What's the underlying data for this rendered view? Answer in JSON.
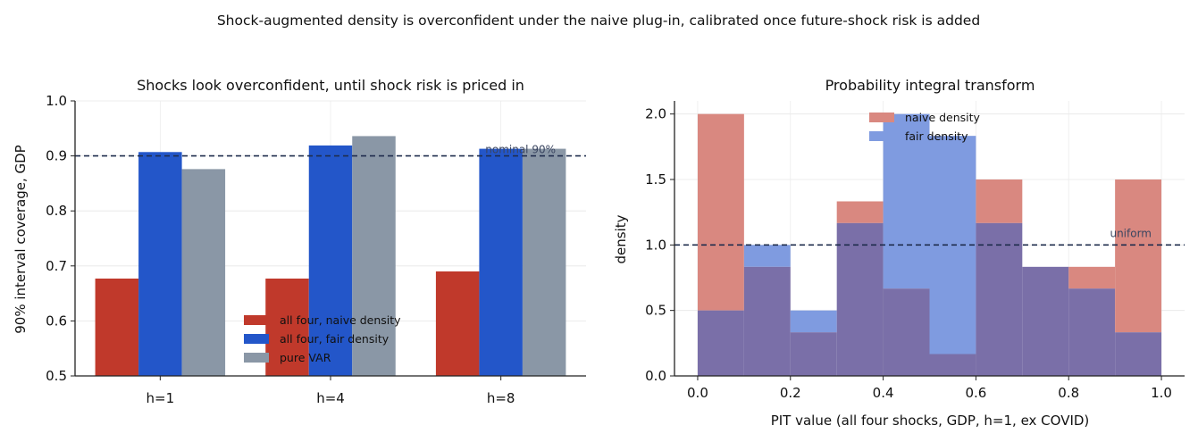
{
  "suptitle": "Shock-augmented density is overconfident under the naive plug-in, calibrated once future-shock risk is added",
  "colors": {
    "naive": "#c0392b",
    "fair": "#2356c9",
    "var": "#8a97a6",
    "ref_line": "#1f2d4d",
    "hist_naive": "#d98880",
    "hist_fair": "#7f9be0",
    "hist_overlap": "#7a6fa8"
  },
  "chart_data": [
    {
      "type": "bar",
      "title": "Shocks look overconfident, until shock risk is priced in",
      "xlabel": "",
      "ylabel": "90% interval coverage, GDP",
      "categories": [
        "h=1",
        "h=4",
        "h=8"
      ],
      "series": [
        {
          "name": "all four, naive density",
          "values": [
            0.677,
            0.677,
            0.69
          ],
          "color_key": "naive"
        },
        {
          "name": "all four, fair density",
          "values": [
            0.907,
            0.919,
            0.913
          ],
          "color_key": "fair"
        },
        {
          "name": "pure VAR",
          "values": [
            0.876,
            0.936,
            0.913
          ],
          "color_key": "var"
        }
      ],
      "ylim": [
        0.5,
        1.0
      ],
      "yticks": [
        0.5,
        0.6,
        0.7,
        0.8,
        0.9,
        1.0
      ],
      "ytick_labels": [
        "0.5",
        "0.6",
        "0.7",
        "0.8",
        "0.9",
        "1.0"
      ],
      "reference_line": {
        "value": 0.9,
        "label": "nominal 90%"
      },
      "grid": true,
      "legend_position": "lower-center"
    },
    {
      "type": "bar",
      "subtype": "histogram",
      "title": "Probability integral transform",
      "xlabel": "PIT value (all four shocks, GDP, h=1, ex COVID)",
      "ylabel": "density",
      "bin_edges": [
        0.0,
        0.1,
        0.2,
        0.3,
        0.4,
        0.5,
        0.6,
        0.7,
        0.8,
        0.9,
        1.0
      ],
      "series": [
        {
          "name": "naive density",
          "values": [
            2.0,
            0.833,
            0.333,
            1.333,
            0.667,
            0.167,
            1.5,
            0.833,
            0.833,
            1.5
          ],
          "color_key": "hist_naive"
        },
        {
          "name": "fair density",
          "values": [
            0.5,
            1.0,
            0.5,
            1.167,
            2.0,
            1.833,
            1.167,
            0.833,
            0.667,
            0.333
          ],
          "color_key": "hist_fair"
        }
      ],
      "xlim": [
        -0.05,
        1.05
      ],
      "ylim": [
        0.0,
        2.1
      ],
      "xticks": [
        0.0,
        0.2,
        0.4,
        0.6,
        0.8,
        1.0
      ],
      "xtick_labels": [
        "0.0",
        "0.2",
        "0.4",
        "0.6",
        "0.8",
        "1.0"
      ],
      "yticks": [
        0.0,
        0.5,
        1.0,
        1.5,
        2.0
      ],
      "ytick_labels": [
        "0.0",
        "0.5",
        "1.0",
        "1.5",
        "2.0"
      ],
      "reference_line": {
        "value": 1.0,
        "label": "uniform"
      },
      "grid": true,
      "legend_position": "upper-center"
    }
  ]
}
